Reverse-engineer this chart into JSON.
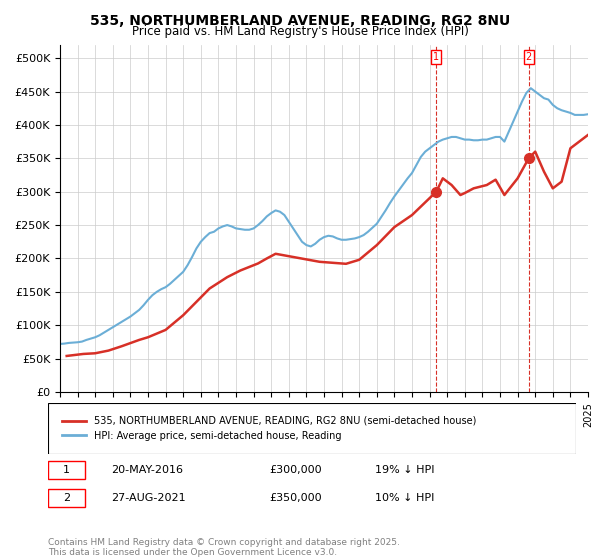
{
  "title": "535, NORTHUMBERLAND AVENUE, READING, RG2 8NU",
  "subtitle": "Price paid vs. HM Land Registry's House Price Index (HPI)",
  "xlabel": "",
  "ylabel": "",
  "ylim": [
    0,
    520000
  ],
  "yticks": [
    0,
    50000,
    100000,
    150000,
    200000,
    250000,
    300000,
    350000,
    400000,
    450000,
    500000
  ],
  "ytick_labels": [
    "£0",
    "£50K",
    "£100K",
    "£150K",
    "£200K",
    "£250K",
    "£300K",
    "£350K",
    "£400K",
    "£450K",
    "£500K"
  ],
  "hpi_color": "#6baed6",
  "price_color": "#d73027",
  "marker_color": "#d73027",
  "background_color": "#ffffff",
  "grid_color": "#cccccc",
  "legend_label_price": "535, NORTHUMBERLAND AVENUE, READING, RG2 8NU (semi-detached house)",
  "legend_label_hpi": "HPI: Average price, semi-detached house, Reading",
  "annotation1_label": "1",
  "annotation1_date": "20-MAY-2016",
  "annotation1_price": "£300,000",
  "annotation1_hpi": "19% ↓ HPI",
  "annotation2_label": "2",
  "annotation2_date": "27-AUG-2021",
  "annotation2_price": "£350,000",
  "annotation2_hpi": "10% ↓ HPI",
  "footer": "Contains HM Land Registry data © Crown copyright and database right 2025.\nThis data is licensed under the Open Government Licence v3.0.",
  "hpi_x": [
    1995,
    1995.25,
    1995.5,
    1995.75,
    1996,
    1996.25,
    1996.5,
    1996.75,
    1997,
    1997.25,
    1997.5,
    1997.75,
    1998,
    1998.25,
    1998.5,
    1998.75,
    1999,
    1999.25,
    1999.5,
    1999.75,
    2000,
    2000.25,
    2000.5,
    2000.75,
    2001,
    2001.25,
    2001.5,
    2001.75,
    2002,
    2002.25,
    2002.5,
    2002.75,
    2003,
    2003.25,
    2003.5,
    2003.75,
    2004,
    2004.25,
    2004.5,
    2004.75,
    2005,
    2005.25,
    2005.5,
    2005.75,
    2006,
    2006.25,
    2006.5,
    2006.75,
    2007,
    2007.25,
    2007.5,
    2007.75,
    2008,
    2008.25,
    2008.5,
    2008.75,
    2009,
    2009.25,
    2009.5,
    2009.75,
    2010,
    2010.25,
    2010.5,
    2010.75,
    2011,
    2011.25,
    2011.5,
    2011.75,
    2012,
    2012.25,
    2012.5,
    2012.75,
    2013,
    2013.25,
    2013.5,
    2013.75,
    2014,
    2014.25,
    2014.5,
    2014.75,
    2015,
    2015.25,
    2015.5,
    2015.75,
    2016,
    2016.25,
    2016.5,
    2016.75,
    2017,
    2017.25,
    2017.5,
    2017.75,
    2018,
    2018.25,
    2018.5,
    2018.75,
    2019,
    2019.25,
    2019.5,
    2019.75,
    2020,
    2020.25,
    2020.5,
    2020.75,
    2021,
    2021.25,
    2021.5,
    2021.75,
    2022,
    2022.25,
    2022.5,
    2022.75,
    2023,
    2023.25,
    2023.5,
    2023.75,
    2024,
    2024.25,
    2024.5,
    2024.75,
    2025
  ],
  "hpi_y": [
    72000,
    72500,
    73500,
    74000,
    74500,
    75500,
    78000,
    80000,
    82000,
    85000,
    89000,
    93000,
    97000,
    101000,
    105000,
    109000,
    113000,
    118000,
    123000,
    130000,
    138000,
    145000,
    150000,
    154000,
    157000,
    162000,
    168000,
    174000,
    180000,
    190000,
    202000,
    215000,
    225000,
    232000,
    238000,
    240000,
    245000,
    248000,
    250000,
    248000,
    245000,
    244000,
    243000,
    243000,
    245000,
    250000,
    256000,
    263000,
    268000,
    272000,
    270000,
    265000,
    255000,
    245000,
    235000,
    225000,
    220000,
    218000,
    222000,
    228000,
    232000,
    234000,
    233000,
    230000,
    228000,
    228000,
    229000,
    230000,
    232000,
    235000,
    240000,
    246000,
    252000,
    262000,
    272000,
    283000,
    293000,
    302000,
    311000,
    320000,
    328000,
    340000,
    352000,
    360000,
    365000,
    370000,
    375000,
    378000,
    380000,
    382000,
    382000,
    380000,
    378000,
    378000,
    377000,
    377000,
    378000,
    378000,
    380000,
    382000,
    382000,
    375000,
    390000,
    405000,
    420000,
    435000,
    448000,
    455000,
    450000,
    445000,
    440000,
    438000,
    430000,
    425000,
    422000,
    420000,
    418000,
    415000,
    415000,
    415000,
    416000
  ],
  "price_x": [
    1995.38,
    1996.33,
    1997.0,
    1997.75,
    1998.5,
    1999.5,
    2000.0,
    2001.0,
    2002.0,
    2003.5,
    2004.5,
    2005.25,
    2006.25,
    2006.75,
    2007.25,
    2009.75,
    2011.25,
    2012.0,
    2013.0,
    2014.0,
    2015.0,
    2016.38,
    2016.75,
    2017.25,
    2017.75,
    2018.0,
    2018.5,
    2019.25,
    2019.75,
    2020.25,
    2021.0,
    2021.63,
    2022.0,
    2022.5,
    2023.0,
    2023.5,
    2024.0,
    2024.5,
    2025.0
  ],
  "price_y": [
    54000,
    57000,
    58000,
    62000,
    68500,
    78000,
    82000,
    93000,
    115000,
    155000,
    172000,
    182000,
    192500,
    200000,
    207000,
    195000,
    192000,
    198000,
    220000,
    247000,
    265000,
    300000,
    320000,
    310000,
    295000,
    298000,
    305000,
    310000,
    318000,
    295000,
    320000,
    350000,
    360000,
    330000,
    305000,
    315000,
    365000,
    375000,
    385000
  ],
  "sale1_x": 2016.38,
  "sale1_y": 300000,
  "sale2_x": 2021.63,
  "sale2_y": 350000,
  "xmin": 1995,
  "xmax": 2025
}
